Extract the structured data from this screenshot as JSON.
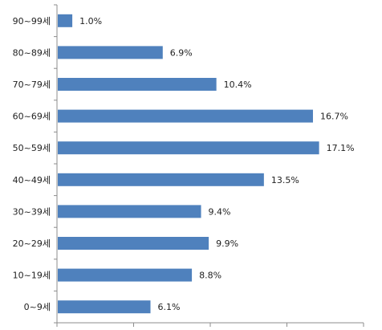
{
  "chart_data": {
    "type": "bar",
    "orientation": "horizontal",
    "categories": [
      "90~99세",
      "80~89세",
      "70~79세",
      "60~69세",
      "50~59세",
      "40~49세",
      "30~39세",
      "20~29세",
      "10~19세",
      "0~9세"
    ],
    "values": [
      1.0,
      6.9,
      10.4,
      16.7,
      17.1,
      13.5,
      9.4,
      9.9,
      8.8,
      6.1
    ],
    "value_labels": [
      "1.0%",
      "6.9%",
      "10.4%",
      "16.7%",
      "17.1%",
      "13.5%",
      "9.4%",
      "9.9%",
      "8.8%",
      "6.1%"
    ],
    "xlim": [
      0,
      20
    ],
    "grid": false,
    "bar_color": "#4f81bd",
    "title": "",
    "xlabel": "",
    "ylabel": ""
  }
}
